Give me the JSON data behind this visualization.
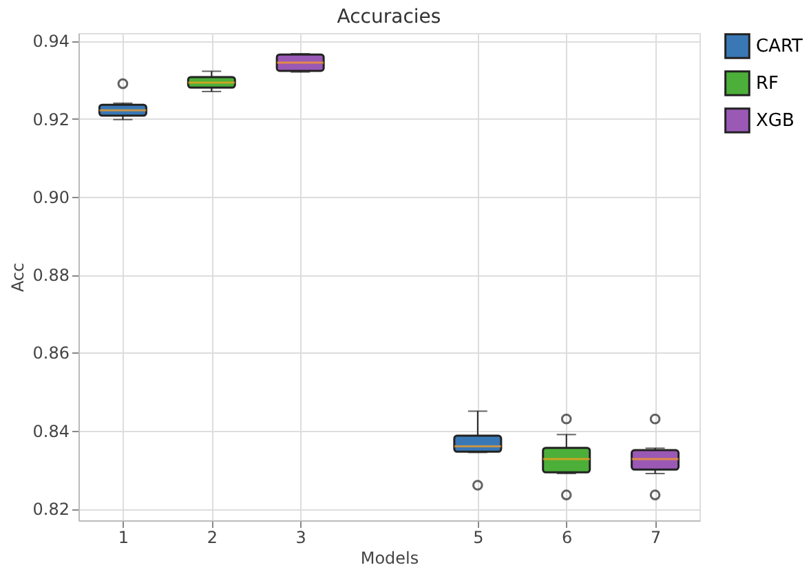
{
  "chart_data": {
    "type": "box",
    "title": "Accuracies",
    "xlabel": "Models",
    "ylabel": "Acc",
    "xlim": [
      0.5,
      7.5
    ],
    "xticks": [
      1,
      2,
      3,
      5,
      6,
      7
    ],
    "ylim": [
      0.817,
      0.942
    ],
    "yticks": [
      0.82,
      0.84,
      0.86,
      0.88,
      {
        "value": 0.9,
        "label": "0.90"
      },
      0.92,
      0.94
    ],
    "grid": true,
    "legend": "right",
    "series": [
      {
        "name": "CART",
        "color": "#3a78b5",
        "x": [
          1,
          5
        ],
        "boxes": [
          {
            "low": 0.9198,
            "q1": 0.9208,
            "median": 0.9222,
            "q3": 0.9236,
            "high": 0.924,
            "outliers": [
              0.929
            ]
          },
          {
            "low": 0.8344,
            "q1": 0.8346,
            "median": 0.836,
            "q3": 0.8387,
            "high": 0.845,
            "outliers": [
              0.826
            ]
          }
        ]
      },
      {
        "name": "RF",
        "color": "#4caf3a",
        "x": [
          2,
          6
        ],
        "boxes": [
          {
            "low": 0.927,
            "q1": 0.928,
            "median": 0.9293,
            "q3": 0.9307,
            "high": 0.9322
          },
          {
            "low": 0.829,
            "q1": 0.8293,
            "median": 0.8327,
            "q3": 0.8356,
            "high": 0.839,
            "outliers": [
              0.843,
              0.8235
            ]
          }
        ]
      },
      {
        "name": "XGB",
        "color": "#9b59b6",
        "x": [
          3,
          7
        ],
        "boxes": [
          {
            "low": 0.932,
            "q1": 0.9323,
            "median": 0.9344,
            "q3": 0.9365,
            "high": 0.9367
          },
          {
            "low": 0.829,
            "q1": 0.83,
            "median": 0.8327,
            "q3": 0.835,
            "high": 0.8355,
            "outliers": [
              0.843,
              0.8235
            ]
          }
        ]
      }
    ]
  }
}
